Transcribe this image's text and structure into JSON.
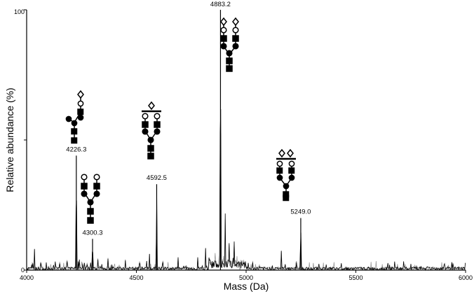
{
  "chart_data": {
    "type": "line",
    "title": "",
    "xlabel": "Mass (Da)",
    "ylabel": "Relative abundance (%)",
    "xlim": [
      4000,
      6000
    ],
    "ylim": [
      0,
      100
    ],
    "x_ticks": [
      "4000",
      "4500",
      "5000",
      "5500",
      "6000"
    ],
    "y_ticks": [
      "0",
      "100"
    ],
    "grid": false,
    "peaks": [
      {
        "label": "4226.3",
        "mass": 4226.3,
        "abundance": 44
      },
      {
        "label": "4300.3",
        "mass": 4300.3,
        "abundance": 12
      },
      {
        "label": "4592.5",
        "mass": 4592.5,
        "abundance": 33
      },
      {
        "label": "4883.2",
        "mass": 4883.2,
        "abundance": 100
      },
      {
        "label": "5249.0",
        "mass": 5249.0,
        "abundance": 20
      }
    ],
    "minor_peaks": [
      {
        "mass": 4036,
        "abundance": 9
      },
      {
        "mass": 4065,
        "abundance": 5
      },
      {
        "mass": 4150,
        "abundance": 4
      },
      {
        "mass": 4185,
        "abundance": 6
      },
      {
        "mass": 4255,
        "abundance": 3
      },
      {
        "mass": 4275,
        "abundance": 4
      },
      {
        "mass": 4325,
        "abundance": 5
      },
      {
        "mass": 4370,
        "abundance": 6
      },
      {
        "mass": 4450,
        "abundance": 4
      },
      {
        "mass": 4515,
        "abundance": 6
      },
      {
        "mass": 4560,
        "abundance": 7
      },
      {
        "mass": 4620,
        "abundance": 6
      },
      {
        "mass": 4690,
        "abundance": 5
      },
      {
        "mass": 4780,
        "abundance": 6
      },
      {
        "mass": 4815,
        "abundance": 10
      },
      {
        "mass": 4860,
        "abundance": 8
      },
      {
        "mass": 4905,
        "abundance": 24
      },
      {
        "mass": 4922,
        "abundance": 15
      },
      {
        "mass": 4945,
        "abundance": 16
      },
      {
        "mass": 4980,
        "abundance": 5
      },
      {
        "mass": 5030,
        "abundance": 3
      },
      {
        "mass": 5060,
        "abundance": 2
      },
      {
        "mass": 5160,
        "abundance": 9
      },
      {
        "mass": 5230,
        "abundance": 4
      }
    ],
    "colors": {
      "spectrum": "#000000",
      "overlay": "#9a9a9a"
    },
    "glycan_icons": [
      "glycan-structure-icon"
    ]
  }
}
